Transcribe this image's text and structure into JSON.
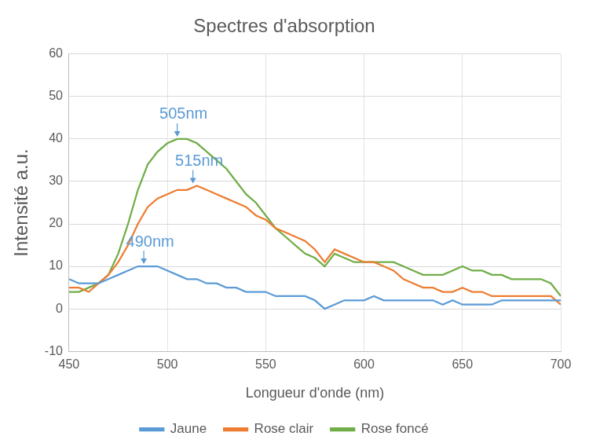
{
  "chart_data": {
    "type": "line",
    "title": "Spectres d'absorption",
    "x_label": "Longueur d'onde (nm)",
    "y_label": "Intensité a.u.",
    "x": [
      450,
      455,
      460,
      465,
      470,
      475,
      480,
      485,
      490,
      495,
      500,
      505,
      510,
      515,
      520,
      525,
      530,
      535,
      540,
      545,
      550,
      555,
      560,
      565,
      570,
      575,
      580,
      585,
      590,
      595,
      600,
      605,
      610,
      615,
      620,
      625,
      630,
      635,
      640,
      645,
      650,
      655,
      660,
      665,
      670,
      675,
      680,
      685,
      690,
      695,
      700
    ],
    "series": [
      {
        "name": "Jaune",
        "color": "#5b9bd5",
        "values": [
          7,
          6,
          6,
          6,
          7,
          8,
          9,
          10,
          10,
          10,
          9,
          8,
          7,
          7,
          6,
          6,
          5,
          5,
          4,
          4,
          4,
          3,
          3,
          3,
          3,
          2,
          0,
          1,
          2,
          2,
          2,
          3,
          2,
          2,
          2,
          2,
          2,
          2,
          1,
          2,
          1,
          1,
          1,
          1,
          2,
          2,
          2,
          2,
          2,
          2,
          2
        ]
      },
      {
        "name": "Rose clair",
        "color": "#ed7d31",
        "values": [
          5,
          5,
          4,
          6,
          8,
          11,
          15,
          20,
          24,
          26,
          27,
          28,
          28,
          29,
          28,
          27,
          26,
          25,
          24,
          22,
          21,
          19,
          18,
          17,
          16,
          14,
          11,
          14,
          13,
          12,
          11,
          11,
          10,
          9,
          7,
          6,
          5,
          5,
          4,
          4,
          5,
          4,
          4,
          3,
          3,
          3,
          3,
          3,
          3,
          3,
          1
        ]
      },
      {
        "name": "Rose foncé",
        "color": "#70ad47",
        "values": [
          4,
          4,
          5,
          6,
          8,
          13,
          20,
          28,
          34,
          37,
          39,
          40,
          40,
          39,
          37,
          35,
          33,
          30,
          27,
          25,
          22,
          19,
          17,
          15,
          13,
          12,
          10,
          13,
          12,
          11,
          11,
          11,
          11,
          11,
          10,
          9,
          8,
          8,
          8,
          9,
          10,
          9,
          9,
          8,
          8,
          7,
          7,
          7,
          7,
          6,
          3
        ]
      }
    ],
    "annotations": [
      {
        "text": "505nm",
        "x": 505,
        "y": 40,
        "color": "#5b9bd5"
      },
      {
        "text": "515nm",
        "x": 513,
        "y": 29,
        "color": "#5b9bd5"
      },
      {
        "text": "490nm",
        "x": 488,
        "y": 10,
        "color": "#5b9bd5"
      }
    ],
    "xlim": [
      450,
      700
    ],
    "xticks": [
      450,
      500,
      550,
      600,
      650,
      700
    ],
    "ylim": [
      -10,
      60
    ],
    "yticks": [
      -10,
      0,
      10,
      20,
      30,
      40,
      50,
      60
    ],
    "grid": true,
    "legend": "bottom"
  }
}
